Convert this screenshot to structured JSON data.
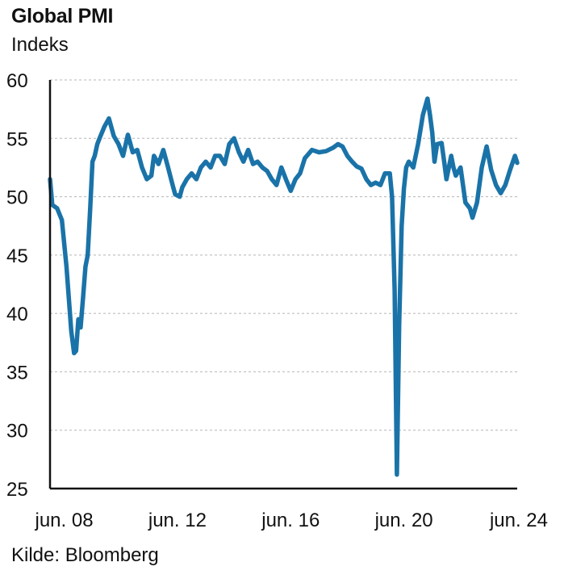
{
  "title": "Global PMI",
  "subtitle": "Indeks",
  "source": "Kilde: Bloomberg",
  "colors": {
    "line": "#1a73a8",
    "grid": "#b5b5b5",
    "axis": "#111111"
  },
  "chart_data": {
    "type": "line",
    "title": "Global PMI",
    "ylabel": "Indeks",
    "ylim": [
      25,
      60
    ],
    "yticks": [
      25,
      30,
      35,
      40,
      45,
      50,
      55,
      60
    ],
    "xlim": [
      2008.0,
      2024.5
    ],
    "xticks": [
      {
        "x": 2008.5,
        "label": "jun. 08"
      },
      {
        "x": 2012.5,
        "label": "jun. 12"
      },
      {
        "x": 2016.5,
        "label": "jun. 16"
      },
      {
        "x": 2020.5,
        "label": "jun. 20"
      },
      {
        "x": 2024.5,
        "label": "jun. 24"
      }
    ],
    "grid": "horizontal dashed",
    "series": [
      {
        "x": [
          2008.0,
          2008.08,
          2008.25,
          2008.42,
          2008.58,
          2008.75,
          2008.85,
          2008.92,
          2009.0,
          2009.08,
          2009.17,
          2009.25,
          2009.33,
          2009.42,
          2009.5,
          2009.58,
          2009.67,
          2009.75,
          2009.92,
          2010.08,
          2010.25,
          2010.42,
          2010.58,
          2010.75,
          2010.92,
          2011.08,
          2011.25,
          2011.42,
          2011.58,
          2011.67,
          2011.83,
          2012.0,
          2012.17,
          2012.33,
          2012.42,
          2012.58,
          2012.67,
          2012.83,
          2013.0,
          2013.17,
          2013.33,
          2013.5,
          2013.67,
          2013.83,
          2014.0,
          2014.17,
          2014.33,
          2014.5,
          2014.67,
          2014.83,
          2015.0,
          2015.17,
          2015.33,
          2015.5,
          2015.67,
          2015.83,
          2016.0,
          2016.17,
          2016.33,
          2016.5,
          2016.67,
          2016.83,
          2017.0,
          2017.25,
          2017.5,
          2017.75,
          2018.0,
          2018.17,
          2018.33,
          2018.5,
          2018.67,
          2018.83,
          2019.0,
          2019.17,
          2019.33,
          2019.5,
          2019.67,
          2019.83,
          2020.0,
          2020.08,
          2020.17,
          2020.25,
          2020.33,
          2020.42,
          2020.5,
          2020.58,
          2020.67,
          2020.83,
          2021.0,
          2021.17,
          2021.33,
          2021.42,
          2021.5,
          2021.58,
          2021.67,
          2021.83,
          2021.92,
          2022.0,
          2022.17,
          2022.25,
          2022.33,
          2022.5,
          2022.67,
          2022.83,
          2022.92,
          2023.08,
          2023.25,
          2023.42,
          2023.58,
          2023.75,
          2023.92,
          2024.08,
          2024.25,
          2024.42,
          2024.5
        ],
        "y": [
          51.5,
          49.3,
          49.0,
          48.0,
          44.0,
          38.5,
          36.6,
          36.8,
          39.5,
          38.8,
          41.5,
          44.0,
          45.0,
          49.0,
          53.0,
          53.5,
          54.5,
          55.0,
          56.0,
          56.7,
          55.2,
          54.5,
          53.5,
          55.3,
          53.8,
          54.0,
          52.5,
          51.5,
          51.8,
          53.5,
          52.8,
          54.0,
          52.5,
          51.0,
          50.2,
          50.0,
          50.8,
          51.5,
          52.0,
          51.5,
          52.5,
          53.0,
          52.5,
          53.5,
          53.5,
          52.8,
          54.5,
          55.0,
          53.8,
          53.0,
          54.0,
          52.8,
          53.0,
          52.5,
          52.2,
          51.5,
          51.0,
          52.5,
          51.5,
          50.5,
          51.5,
          52.0,
          53.3,
          54.0,
          53.8,
          53.9,
          54.2,
          54.5,
          54.3,
          53.5,
          53.0,
          52.6,
          52.4,
          51.5,
          51.0,
          51.2,
          51.0,
          52.0,
          52.0,
          50.0,
          42.0,
          26.2,
          39.0,
          47.5,
          50.7,
          52.5,
          53.0,
          52.5,
          54.5,
          57.0,
          58.4,
          57.0,
          55.5,
          53.0,
          54.5,
          54.6,
          53.0,
          51.5,
          53.5,
          52.5,
          51.8,
          52.5,
          49.5,
          49.0,
          48.2,
          49.5,
          52.5,
          54.3,
          52.3,
          51.0,
          50.3,
          51.0,
          52.3,
          53.5,
          52.9
        ]
      }
    ]
  }
}
